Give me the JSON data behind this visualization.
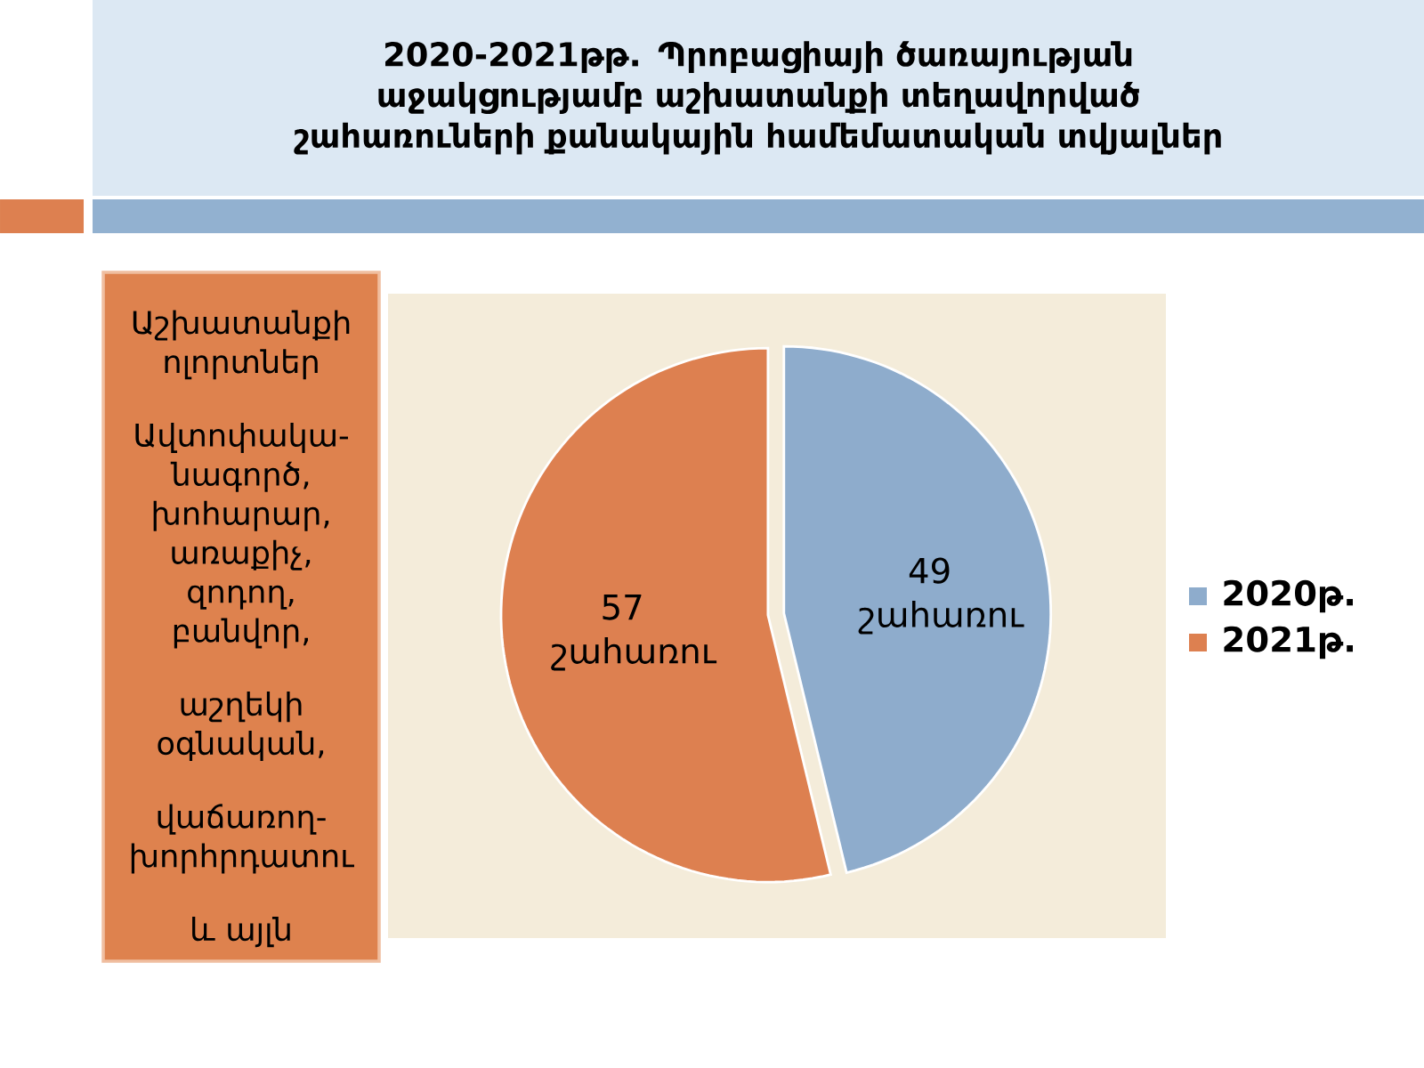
{
  "chart_data": {
    "type": "pie",
    "title": "2020-2021թթ.  Պրոբացիայի ծառայության աջակցությամբ աշխատանքի տեղավորված շահառուների քանակային համեմատական տվյալներ",
    "categories": [
      "2020թ.",
      "2021թ."
    ],
    "values": [
      49,
      57
    ],
    "colors": [
      "#8eaccc",
      "#dd8050"
    ],
    "value_labels": [
      "49 շահառու",
      "57 շահառու"
    ],
    "legend": "right",
    "annotations": [
      "Աշխատանքի ոլորտներ",
      "Ավտոփակա-նագործ, խոհարար, առաքիչ, զոդող, բանվոր,",
      "աշղեկի օգնական,",
      "վաճառող-խորհրդատու",
      "և այլն"
    ]
  }
}
